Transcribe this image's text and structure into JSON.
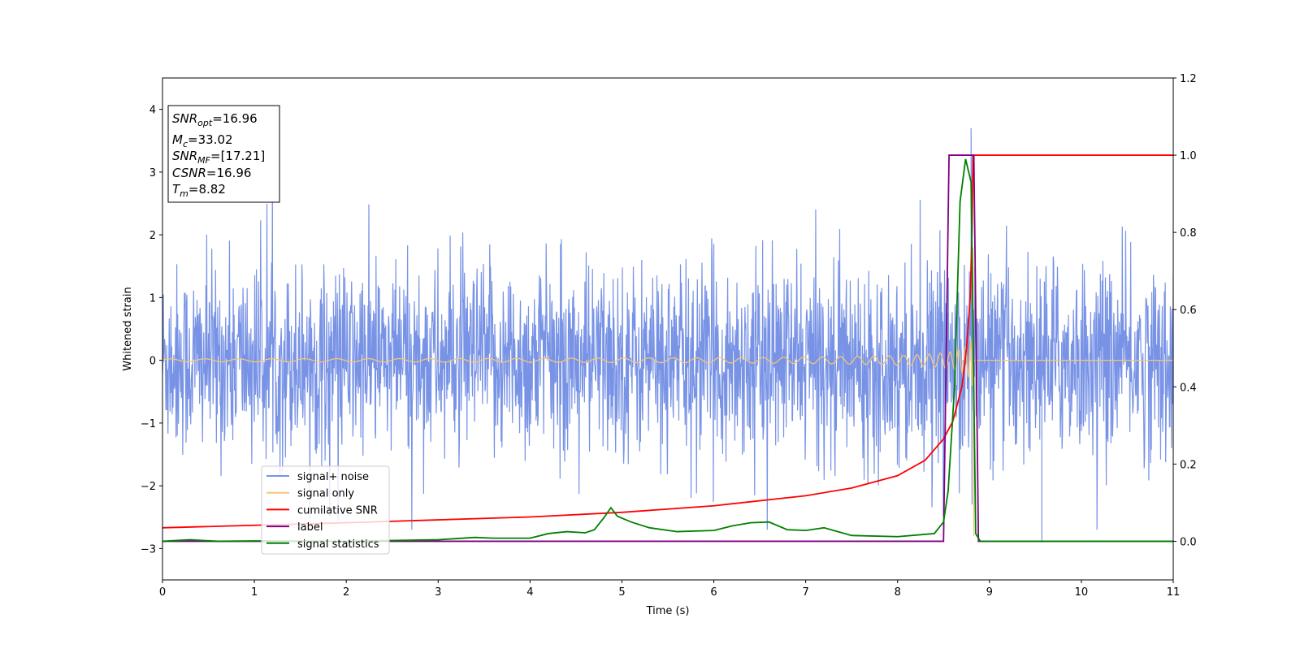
{
  "chart_data": {
    "type": "line",
    "xlabel": "Time (s)",
    "ylabel": "Whitened strain",
    "xlim": [
      0,
      11
    ],
    "ylim_left": [
      -3.5,
      4.5
    ],
    "ylim_right": [
      -0.1,
      1.2
    ],
    "x_ticks": [
      0,
      1,
      2,
      3,
      4,
      5,
      6,
      7,
      8,
      9,
      10,
      11
    ],
    "y_ticks_left": [
      -3,
      -2,
      -1,
      0,
      1,
      2,
      3,
      4
    ],
    "y_ticks_right": [
      0.0,
      0.2,
      0.4,
      0.6,
      0.8,
      1.0,
      1.2
    ],
    "legend_position": "lower-left",
    "annotations": [
      {
        "base": "SNR",
        "sub": "opt",
        "value": "=16.96"
      },
      {
        "base": "M",
        "sub": "c",
        "value": "=33.02"
      },
      {
        "base": "SNR",
        "sub": "MF",
        "value": "=[17.21]"
      },
      {
        "base": "CSNR",
        "sub": "",
        "value": "=16.96"
      },
      {
        "base": "T",
        "sub": "m",
        "value": "=8.82"
      }
    ],
    "series": [
      {
        "name": "signal+ noise",
        "color": "#7893e6",
        "axis": "left",
        "kind": "noise",
        "envelope_typical": 1.5,
        "peak_max": 3.7,
        "peak_min": -2.9
      },
      {
        "name": "signal only",
        "color": "#f5c57a",
        "axis": "left",
        "kind": "chirp",
        "merger_time": 8.82,
        "peak_amplitude": 1.8
      },
      {
        "name": "cumilative SNR",
        "color": "#ff0000",
        "axis": "right",
        "points": [
          [
            0,
            0.035
          ],
          [
            2,
            0.048
          ],
          [
            4,
            0.063
          ],
          [
            5,
            0.075
          ],
          [
            6,
            0.092
          ],
          [
            7,
            0.118
          ],
          [
            7.5,
            0.138
          ],
          [
            8,
            0.17
          ],
          [
            8.3,
            0.21
          ],
          [
            8.5,
            0.265
          ],
          [
            8.6,
            0.31
          ],
          [
            8.7,
            0.4
          ],
          [
            8.75,
            0.5
          ],
          [
            8.79,
            0.63
          ],
          [
            8.81,
            0.8
          ],
          [
            8.82,
            1.0
          ],
          [
            11,
            1.0
          ]
        ]
      },
      {
        "name": "label",
        "color": "#800080",
        "axis": "right",
        "points": [
          [
            0,
            0.0
          ],
          [
            8.5,
            0.0
          ],
          [
            8.56,
            1.0
          ],
          [
            8.83,
            1.0
          ],
          [
            8.88,
            0.0
          ],
          [
            11,
            0.0
          ]
        ]
      },
      {
        "name": "signal statistics",
        "color": "#008000",
        "axis": "right",
        "points": [
          [
            0,
            0.0
          ],
          [
            0.3,
            0.004
          ],
          [
            0.6,
            0.0
          ],
          [
            1.0,
            0.001
          ],
          [
            2.0,
            0.0
          ],
          [
            3.0,
            0.004
          ],
          [
            3.4,
            0.01
          ],
          [
            3.6,
            0.008
          ],
          [
            4.0,
            0.008
          ],
          [
            4.2,
            0.02
          ],
          [
            4.4,
            0.025
          ],
          [
            4.6,
            0.022
          ],
          [
            4.7,
            0.03
          ],
          [
            4.8,
            0.06
          ],
          [
            4.88,
            0.087
          ],
          [
            4.95,
            0.065
          ],
          [
            5.1,
            0.05
          ],
          [
            5.3,
            0.035
          ],
          [
            5.6,
            0.025
          ],
          [
            6.0,
            0.028
          ],
          [
            6.2,
            0.04
          ],
          [
            6.4,
            0.048
          ],
          [
            6.6,
            0.05
          ],
          [
            6.8,
            0.03
          ],
          [
            7.0,
            0.028
          ],
          [
            7.2,
            0.035
          ],
          [
            7.5,
            0.015
          ],
          [
            8.0,
            0.012
          ],
          [
            8.4,
            0.02
          ],
          [
            8.5,
            0.05
          ],
          [
            8.55,
            0.13
          ],
          [
            8.62,
            0.4
          ],
          [
            8.68,
            0.88
          ],
          [
            8.74,
            0.99
          ],
          [
            8.8,
            0.93
          ],
          [
            8.85,
            0.02
          ],
          [
            8.9,
            0.0
          ],
          [
            11,
            0.0
          ]
        ]
      }
    ]
  }
}
